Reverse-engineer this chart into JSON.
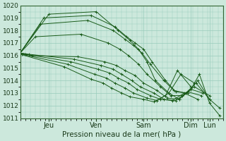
{
  "xlabel": "Pression niveau de la mer( hPa )",
  "ylim": [
    1011,
    1020
  ],
  "xlim": [
    0,
    120
  ],
  "yticks": [
    1011,
    1012,
    1013,
    1014,
    1015,
    1016,
    1017,
    1018,
    1019,
    1020
  ],
  "xtick_positions": [
    17,
    45,
    73,
    101,
    112
  ],
  "xtick_labels": [
    "Jeu",
    "Ven",
    "Sam",
    "Dim",
    "Lun"
  ],
  "bg_color": "#cce8dc",
  "grid_color": "#99ccbb",
  "line_color": "#1a5c1a",
  "lines": [
    {
      "x": [
        0,
        17,
        45,
        58,
        65,
        70,
        75,
        80,
        88,
        94,
        101,
        106,
        112,
        118
      ],
      "y": [
        1016.2,
        1019.3,
        1019.5,
        1018.0,
        1017.2,
        1016.5,
        1015.5,
        1014.0,
        1013.0,
        1012.5,
        1013.3,
        1014.5,
        1012.2,
        1011.2
      ]
    },
    {
      "x": [
        0,
        14,
        42,
        56,
        63,
        68,
        73,
        78,
        86,
        92,
        99,
        105,
        112,
        118
      ],
      "y": [
        1016.2,
        1019.0,
        1019.2,
        1018.3,
        1017.5,
        1017.0,
        1016.5,
        1015.5,
        1014.0,
        1013.1,
        1013.0,
        1014.0,
        1012.5,
        1011.8
      ]
    },
    {
      "x": [
        0,
        12,
        40,
        55,
        62,
        67,
        72,
        77,
        85,
        91,
        98,
        104,
        112
      ],
      "y": [
        1016.2,
        1018.5,
        1018.8,
        1018.0,
        1017.3,
        1016.8,
        1016.2,
        1015.3,
        1014.0,
        1013.2,
        1013.0,
        1013.8,
        1012.5
      ]
    },
    {
      "x": [
        0,
        9,
        36,
        52,
        59,
        64,
        70,
        75,
        83,
        89,
        96,
        103,
        112
      ],
      "y": [
        1016.2,
        1017.5,
        1017.7,
        1017.0,
        1016.5,
        1016.0,
        1015.3,
        1014.5,
        1013.5,
        1012.8,
        1012.8,
        1013.5,
        1012.8
      ]
    },
    {
      "x": [
        0,
        7,
        34,
        50,
        57,
        62,
        68,
        73,
        81,
        87,
        94,
        101,
        108
      ],
      "y": [
        1016.2,
        1016.0,
        1015.9,
        1015.5,
        1015.2,
        1014.8,
        1014.4,
        1013.8,
        1013.2,
        1012.6,
        1012.5,
        1013.3,
        1013.0
      ]
    },
    {
      "x": [
        0,
        5,
        32,
        48,
        55,
        60,
        66,
        71,
        79,
        85,
        92,
        99,
        107
      ],
      "y": [
        1016.2,
        1016.1,
        1015.7,
        1015.2,
        1014.9,
        1014.5,
        1014.0,
        1013.5,
        1013.0,
        1012.5,
        1012.4,
        1013.1,
        1012.8
      ]
    },
    {
      "x": [
        0,
        3,
        30,
        46,
        53,
        58,
        64,
        69,
        77,
        83,
        90,
        97,
        105
      ],
      "y": [
        1016.2,
        1016.1,
        1015.5,
        1014.9,
        1014.6,
        1014.2,
        1013.8,
        1013.3,
        1012.8,
        1012.5,
        1012.4,
        1013.0,
        1012.5
      ]
    },
    {
      "x": [
        0,
        1,
        28,
        44,
        51,
        56,
        62,
        67,
        75,
        81,
        88,
        95,
        103
      ],
      "y": [
        1016.2,
        1016.1,
        1015.3,
        1014.5,
        1014.2,
        1013.8,
        1013.4,
        1013.0,
        1012.6,
        1012.4,
        1013.0,
        1014.5,
        1013.8
      ]
    },
    {
      "x": [
        0,
        0,
        26,
        42,
        49,
        54,
        60,
        65,
        73,
        79,
        86,
        93,
        101
      ],
      "y": [
        1016.2,
        1016.1,
        1015.1,
        1014.1,
        1013.8,
        1013.4,
        1013.0,
        1012.7,
        1012.5,
        1012.3,
        1012.8,
        1014.8,
        1013.5
      ]
    }
  ]
}
